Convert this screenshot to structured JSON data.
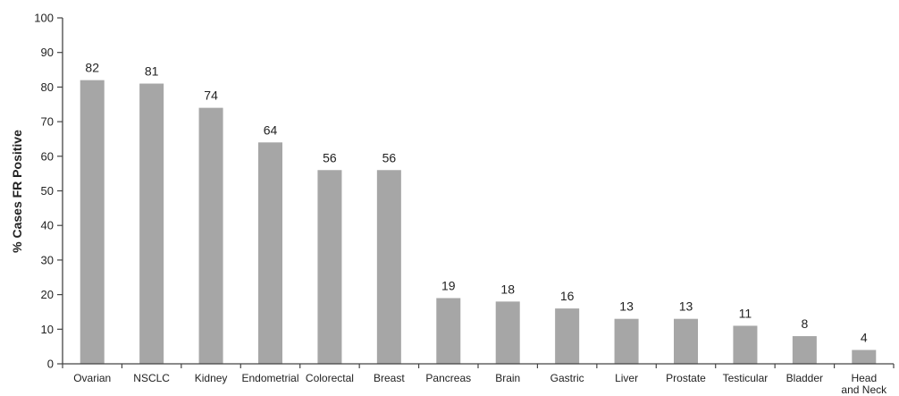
{
  "chart_data": {
    "type": "bar",
    "categories": [
      "Ovarian",
      "NSCLC",
      "Kidney",
      "Endometrial",
      "Colorectal",
      "Breast",
      "Pancreas",
      "Brain",
      "Gastric",
      "Liver",
      "Prostate",
      "Testicular",
      "Bladder",
      "Head and Neck"
    ],
    "values": [
      82,
      81,
      74,
      64,
      56,
      56,
      19,
      18,
      16,
      13,
      13,
      11,
      8,
      4
    ],
    "title": "",
    "xlabel": "",
    "ylabel": "% Cases FR Positive",
    "ylim": [
      0,
      100
    ],
    "yticks": [
      0,
      10,
      20,
      30,
      40,
      50,
      60,
      70,
      80,
      90,
      100
    ],
    "grid": false,
    "legend": "none",
    "bar_color": "#a6a6a6",
    "axis_color": "#444444"
  }
}
